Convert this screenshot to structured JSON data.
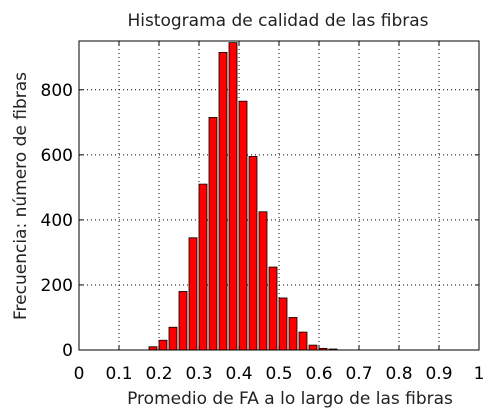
{
  "chart_data": {
    "type": "bar",
    "title": "Histograma de calidad de las fibras",
    "xlabel": "Promedio de FA a lo largo de las fibras",
    "ylabel": "Frecuencia: número de fibras",
    "xlim": [
      0,
      1
    ],
    "ylim": [
      0,
      950
    ],
    "x_ticks": [
      "0",
      "0.1",
      "0.2",
      "0.3",
      "0.4",
      "0.5",
      "0.6",
      "0.7",
      "0.8",
      "0.9",
      "1"
    ],
    "y_ticks": [
      "0",
      "200",
      "400",
      "600",
      "800"
    ],
    "grid": true,
    "bar_color": "#ff0000",
    "bar_edge_color": "#000000",
    "bins": [
      0.185,
      0.21,
      0.235,
      0.26,
      0.285,
      0.31,
      0.335,
      0.36,
      0.385,
      0.41,
      0.435,
      0.46,
      0.485,
      0.51,
      0.535,
      0.56,
      0.585,
      0.61,
      0.635
    ],
    "values": [
      10,
      30,
      70,
      180,
      345,
      510,
      715,
      915,
      945,
      765,
      595,
      425,
      255,
      160,
      100,
      55,
      15,
      5,
      3
    ]
  }
}
